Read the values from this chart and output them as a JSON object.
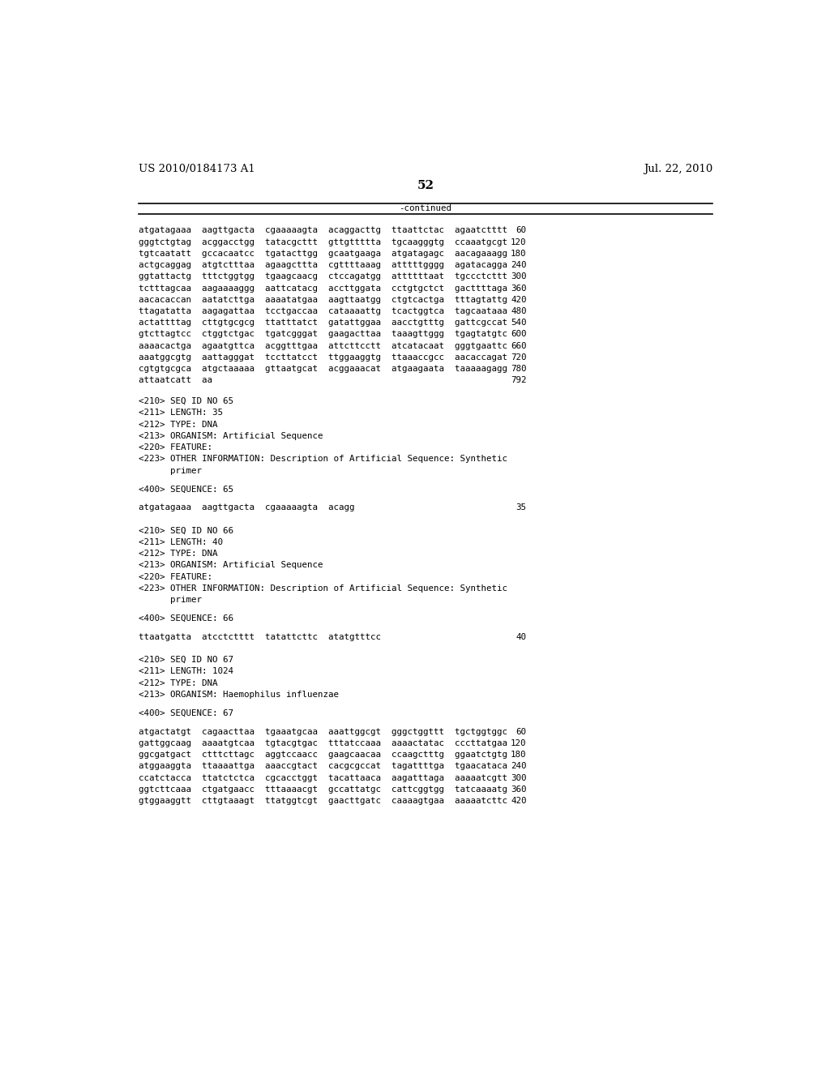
{
  "header_left": "US 2010/0184173 A1",
  "header_right": "Jul. 22, 2010",
  "page_number": "52",
  "continued_label": "-continued",
  "background_color": "#ffffff",
  "text_color": "#000000",
  "font_size_header": 9.5,
  "font_size_body": 7.8,
  "font_size_page": 11,
  "sequence_lines": [
    {
      "text": "atgatagaaa  aagttgacta  cgaaaaagta  acaggacttg  ttaattctac  agaatctttt",
      "num": "60"
    },
    {
      "text": "gggtctgtag  acggacctgg  tatacgcttt  gttgttttta  tgcaagggtg  ccaaatgcgt",
      "num": "120"
    },
    {
      "text": "tgtcaatatt  gccacaatcc  tgatacttgg  gcaatgaaga  atgatagagc  aacagaaagg",
      "num": "180"
    },
    {
      "text": "actgcaggag  atgtctttaa  agaagcttta  cgttttaaag  atttttgggg  agatacagga",
      "num": "240"
    },
    {
      "text": "ggtattactg  tttctggtgg  tgaagcaacg  ctccagatgg  attttttaat  tgccctcttt",
      "num": "300"
    },
    {
      "text": "tctttagcaa  aagaaaaggg  aattcatacg  accttggata  cctgtgctct  gacttttaga",
      "num": "360"
    },
    {
      "text": "aacacaccan  aatatcttga  aaaatatgaa  aagttaatgg  ctgtcactga  tttagtattg",
      "num": "420"
    },
    {
      "text": "ttagatatta  aagagattaa  tcctgaccaa  cataaaattg  tcactggtca  tagcaataaa",
      "num": "480"
    },
    {
      "text": "actattttag  cttgtgcgcg  ttatttatct  gatattggaa  aacctgtttg  gattcgccat",
      "num": "540"
    },
    {
      "text": "gtcttagtcc  ctggtctgac  tgatcgggat  gaagacttaa  taaagttggg  tgagtatgtc",
      "num": "600"
    },
    {
      "text": "aaaacactga  agaatgttca  acggtttgaa  attcttcctt  atcatacaat  gggtgaattc",
      "num": "660"
    },
    {
      "text": "aaatggcgtg  aattagggat  tccttatcct  ttggaaggtg  ttaaaccgcc  aacaccagat",
      "num": "720"
    },
    {
      "text": "cgtgtgcgca  atgctaaaaa  gttaatgcat  acggaaacat  atgaagaata  taaaaagagg",
      "num": "780"
    },
    {
      "text": "attaatcatt  aa",
      "num": "792"
    }
  ],
  "metadata_blocks": [
    {
      "lines": [
        "<210> SEQ ID NO 65",
        "<211> LENGTH: 35",
        "<212> TYPE: DNA",
        "<213> ORGANISM: Artificial Sequence",
        "<220> FEATURE:",
        "<223> OTHER INFORMATION: Description of Artificial Sequence: Synthetic",
        "      primer"
      ],
      "seq_label": "<400> SEQUENCE: 65",
      "seq_data": [
        {
          "text": "atgatagaaa  aagttgacta  cgaaaaagta  acagg",
          "num": "35"
        }
      ]
    },
    {
      "lines": [
        "<210> SEQ ID NO 66",
        "<211> LENGTH: 40",
        "<212> TYPE: DNA",
        "<213> ORGANISM: Artificial Sequence",
        "<220> FEATURE:",
        "<223> OTHER INFORMATION: Description of Artificial Sequence: Synthetic",
        "      primer"
      ],
      "seq_label": "<400> SEQUENCE: 66",
      "seq_data": [
        {
          "text": "ttaatgatta  atcctctttt  tatattcttc  atatgtttcc",
          "num": "40"
        }
      ]
    },
    {
      "lines": [
        "<210> SEQ ID NO 67",
        "<211> LENGTH: 1024",
        "<212> TYPE: DNA",
        "<213> ORGANISM: Haemophilus influenzae"
      ],
      "seq_label": "<400> SEQUENCE: 67",
      "seq_data": [
        {
          "text": "atgactatgt  cagaacttaa  tgaaatgcaa  aaattggcgt  gggctggttt  tgctggtggc",
          "num": "60"
        },
        {
          "text": "gattggcaag  aaaatgtcaa  tgtacgtgac  tttatccaaa  aaaactatac  cccttatgaa",
          "num": "120"
        },
        {
          "text": "ggcgatgact  ctttcttagc  aggtccaacc  gaagcaacaa  ccaagctttg  ggaatctgtg",
          "num": "180"
        },
        {
          "text": "atggaaggta  ttaaaattga  aaaccgtact  cacgcgccat  tagattttga  tgaacataca",
          "num": "240"
        },
        {
          "text": "ccatctacca  ttatctctca  cgcacctggt  tacattaaca  aagatttaga  aaaaatcgtt",
          "num": "300"
        },
        {
          "text": "ggtcttcaaa  ctgatgaacc  tttaaaacgt  gccattatgc  cattcggtgg  tatcaaaatg",
          "num": "360"
        },
        {
          "text": "gtggaaggtt  cttgtaaagt  ttatggtcgt  gaacttgatc  caaaagtgaa  aaaaatcttc",
          "num": "420"
        }
      ]
    }
  ]
}
